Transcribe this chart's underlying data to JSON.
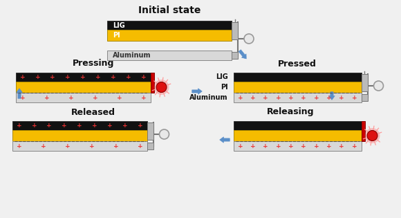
{
  "title": "Initial state",
  "bg_color": "#f0f0f0",
  "labels": {
    "pressing": "Pressing",
    "pressed": "Pressed",
    "released": "Released",
    "releasing": "Releasing",
    "lig": "LIG",
    "pi": "PI",
    "aluminum": "Aluminum"
  },
  "colors": {
    "black_layer": "#111111",
    "gold_layer": "#f5bc00",
    "silver_layer": "#d8d8d8",
    "red_indicator": "#cc0000",
    "blue_arrow": "#5b8fc9",
    "connector_gray": "#999999",
    "connector_box": "#bbbbbb"
  }
}
